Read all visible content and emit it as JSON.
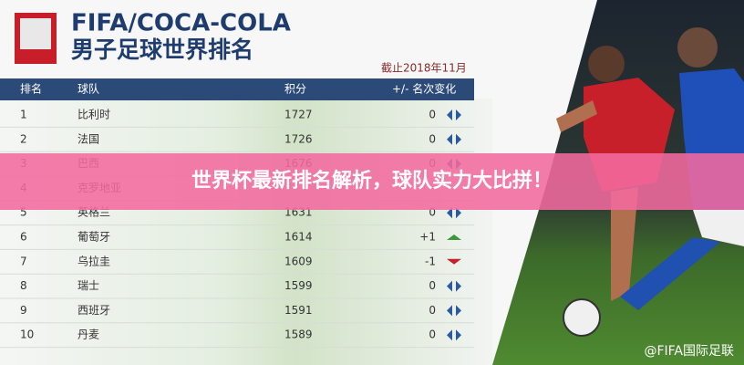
{
  "header": {
    "brand": "FIFA/COCA-COLA",
    "title": "男子足球世界排名",
    "date": "截止2018年11月"
  },
  "table": {
    "columns": [
      "排名",
      "球队",
      "积分",
      "+/- 名次变化"
    ],
    "rows": [
      [
        1,
        "比利时",
        1727,
        "0"
      ],
      [
        2,
        "法国",
        1726,
        "0"
      ],
      [
        3,
        "巴西",
        1676,
        "0"
      ],
      [
        4,
        "克罗地亚",
        null,
        null
      ],
      [
        5,
        "英格兰",
        1631,
        "0"
      ],
      [
        6,
        "葡萄牙",
        1614,
        "+1"
      ],
      [
        7,
        "乌拉圭",
        1609,
        "-1"
      ],
      [
        8,
        "瑞士",
        1599,
        "0"
      ],
      [
        9,
        "西班牙",
        1591,
        "0"
      ],
      [
        10,
        "丹麦",
        1589,
        "0"
      ]
    ]
  },
  "banner": "世界杯最新排名解析，球队实力大比拼！",
  "watermark": "@FIFA国际足联"
}
